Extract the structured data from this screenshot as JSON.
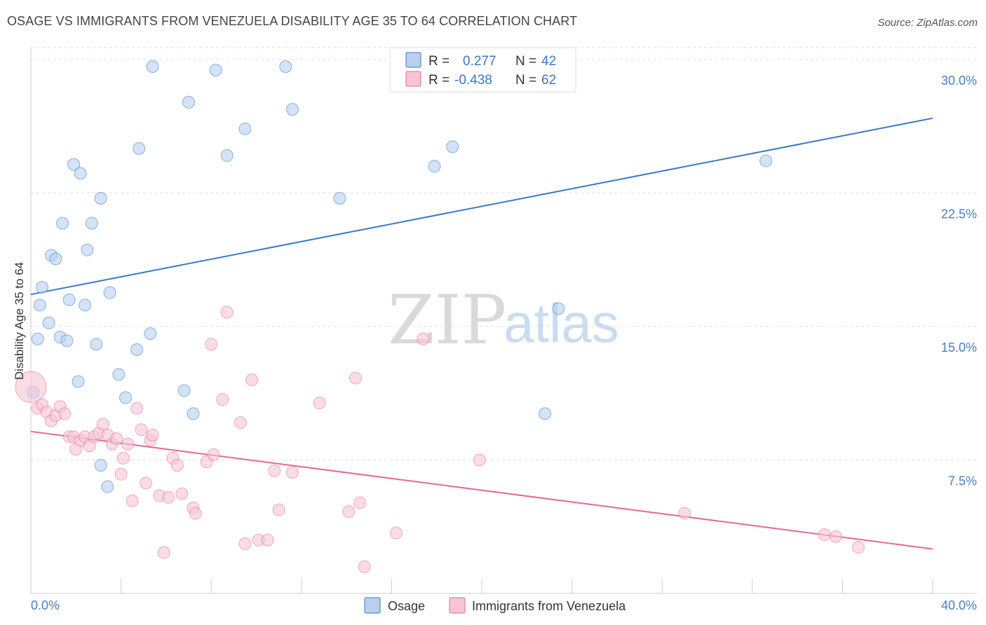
{
  "title": "OSAGE VS IMMIGRANTS FROM VENEZUELA DISABILITY AGE 35 TO 64 CORRELATION CHART",
  "source": "Source: ZipAtlas.com",
  "watermark": {
    "zip": "ZIP",
    "atlas": "atlas"
  },
  "colors": {
    "blue": "#3a78c8",
    "blue_fill": "#b8d0ee",
    "pink": "#e36a96",
    "pink_fill": "#f6c4d5",
    "grid": "#dddddd"
  },
  "legend": {
    "r_label": "R =",
    "n_label": "N =",
    "rows": [
      {
        "r": "0.277",
        "n": "42"
      },
      {
        "r": "-0.438",
        "n": "62"
      }
    ]
  },
  "chart_data": {
    "type": "scatter",
    "title": "OSAGE VS IMMIGRANTS FROM VENEZUELA DISABILITY AGE 35 TO 64 CORRELATION CHART",
    "xlabel": "",
    "ylabel": "Disability Age 35 to 64",
    "xlim": [
      0,
      40
    ],
    "ylim": [
      0,
      30.9
    ],
    "x_tick_labels": [
      "0.0%",
      "40.0%"
    ],
    "y_ticks": [
      7.5,
      15.0,
      22.5,
      30.0
    ],
    "y_tick_labels": [
      "7.5%",
      "15.0%",
      "22.5%",
      "30.0%"
    ],
    "grid": true,
    "legend_position": "top-center",
    "series": [
      {
        "name": "Osage",
        "color": "#3a78c8",
        "trend": {
          "x": [
            0,
            40
          ],
          "y": [
            16.8,
            26.7
          ]
        },
        "points": [
          [
            0.1,
            11.3
          ],
          [
            0.3,
            14.3
          ],
          [
            0.4,
            16.2
          ],
          [
            0.5,
            17.2
          ],
          [
            0.8,
            15.2
          ],
          [
            0.9,
            19.0
          ],
          [
            1.1,
            18.8
          ],
          [
            1.3,
            14.4
          ],
          [
            1.4,
            20.8
          ],
          [
            1.6,
            14.2
          ],
          [
            1.7,
            16.5
          ],
          [
            1.9,
            24.1
          ],
          [
            2.1,
            11.9
          ],
          [
            2.2,
            23.6
          ],
          [
            2.4,
            16.2
          ],
          [
            2.5,
            19.3
          ],
          [
            2.7,
            20.8
          ],
          [
            2.9,
            14.0
          ],
          [
            3.1,
            22.2
          ],
          [
            3.1,
            7.2
          ],
          [
            3.4,
            6.0
          ],
          [
            3.5,
            16.9
          ],
          [
            3.9,
            12.3
          ],
          [
            4.2,
            11.0
          ],
          [
            4.7,
            13.7
          ],
          [
            4.8,
            25.0
          ],
          [
            5.3,
            14.6
          ],
          [
            5.4,
            29.6
          ],
          [
            6.8,
            11.4
          ],
          [
            7.0,
            27.6
          ],
          [
            7.2,
            10.1
          ],
          [
            8.2,
            29.4
          ],
          [
            8.7,
            24.6
          ],
          [
            9.5,
            26.1
          ],
          [
            11.3,
            29.6
          ],
          [
            11.6,
            27.2
          ],
          [
            13.7,
            22.2
          ],
          [
            17.9,
            24.0
          ],
          [
            18.7,
            25.1
          ],
          [
            22.8,
            10.1
          ],
          [
            23.4,
            16.0
          ],
          [
            32.6,
            24.3
          ]
        ]
      },
      {
        "name": "Immigrants from Venezuela",
        "color": "#e36a96",
        "trend": {
          "x": [
            0,
            40
          ],
          "y": [
            9.1,
            2.5
          ]
        },
        "points": [
          [
            0.0,
            11.6
          ],
          [
            0.3,
            10.4
          ],
          [
            0.5,
            10.6
          ],
          [
            0.7,
            10.2
          ],
          [
            0.9,
            9.7
          ],
          [
            1.1,
            10.0
          ],
          [
            1.3,
            10.5
          ],
          [
            1.5,
            10.1
          ],
          [
            1.7,
            8.8
          ],
          [
            1.9,
            8.8
          ],
          [
            2.0,
            8.1
          ],
          [
            2.2,
            8.6
          ],
          [
            2.4,
            8.8
          ],
          [
            2.6,
            8.3
          ],
          [
            2.8,
            8.8
          ],
          [
            3.0,
            9.0
          ],
          [
            3.2,
            9.5
          ],
          [
            3.4,
            8.9
          ],
          [
            3.6,
            8.4
          ],
          [
            3.8,
            8.7
          ],
          [
            4.0,
            6.7
          ],
          [
            4.1,
            7.6
          ],
          [
            4.3,
            8.4
          ],
          [
            4.5,
            5.2
          ],
          [
            4.7,
            10.4
          ],
          [
            4.9,
            9.2
          ],
          [
            5.1,
            6.2
          ],
          [
            5.3,
            8.6
          ],
          [
            5.4,
            8.9
          ],
          [
            5.7,
            5.5
          ],
          [
            5.9,
            2.3
          ],
          [
            6.1,
            5.4
          ],
          [
            6.3,
            7.6
          ],
          [
            6.5,
            7.2
          ],
          [
            6.7,
            5.6
          ],
          [
            7.2,
            4.8
          ],
          [
            7.3,
            4.5
          ],
          [
            7.8,
            7.4
          ],
          [
            8.0,
            14.0
          ],
          [
            8.1,
            7.8
          ],
          [
            8.5,
            10.9
          ],
          [
            8.7,
            15.8
          ],
          [
            9.3,
            9.6
          ],
          [
            9.5,
            2.8
          ],
          [
            9.8,
            12.0
          ],
          [
            10.1,
            3.0
          ],
          [
            10.5,
            3.0
          ],
          [
            10.8,
            6.9
          ],
          [
            11.0,
            4.7
          ],
          [
            11.6,
            6.8
          ],
          [
            12.8,
            10.7
          ],
          [
            14.1,
            4.6
          ],
          [
            14.4,
            12.1
          ],
          [
            14.6,
            5.1
          ],
          [
            14.8,
            1.5
          ],
          [
            16.2,
            3.4
          ],
          [
            17.4,
            14.3
          ],
          [
            19.9,
            7.5
          ],
          [
            29.0,
            4.5
          ],
          [
            35.2,
            3.3
          ],
          [
            35.7,
            3.2
          ],
          [
            36.7,
            2.6
          ]
        ]
      }
    ]
  },
  "bottom_legend": [
    "Osage",
    "Immigrants from Venezuela"
  ]
}
